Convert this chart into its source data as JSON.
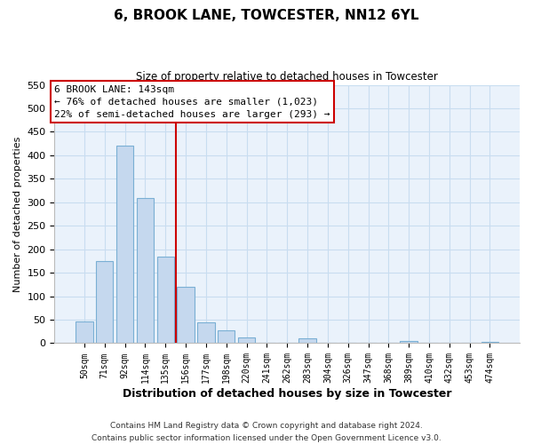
{
  "title": "6, BROOK LANE, TOWCESTER, NN12 6YL",
  "subtitle": "Size of property relative to detached houses in Towcester",
  "xlabel": "Distribution of detached houses by size in Towcester",
  "ylabel": "Number of detached properties",
  "bar_labels": [
    "50sqm",
    "71sqm",
    "92sqm",
    "114sqm",
    "135sqm",
    "156sqm",
    "177sqm",
    "198sqm",
    "220sqm",
    "241sqm",
    "262sqm",
    "283sqm",
    "304sqm",
    "326sqm",
    "347sqm",
    "368sqm",
    "389sqm",
    "410sqm",
    "432sqm",
    "453sqm",
    "474sqm"
  ],
  "bar_heights": [
    47,
    175,
    420,
    310,
    185,
    120,
    45,
    27,
    13,
    0,
    0,
    10,
    0,
    0,
    0,
    0,
    4,
    0,
    0,
    0,
    3
  ],
  "bar_color": "#c5d8ee",
  "bar_edge_color": "#7aafd4",
  "reference_line_x": 4.5,
  "reference_line_color": "#cc0000",
  "ylim": [
    0,
    550
  ],
  "yticks": [
    0,
    50,
    100,
    150,
    200,
    250,
    300,
    350,
    400,
    450,
    500,
    550
  ],
  "annotation_title": "6 BROOK LANE: 143sqm",
  "annotation_line1": "← 76% of detached houses are smaller (1,023)",
  "annotation_line2": "22% of semi-detached houses are larger (293) →",
  "annotation_box_color": "#ffffff",
  "annotation_box_edge_color": "#cc0000",
  "footer_line1": "Contains HM Land Registry data © Crown copyright and database right 2024.",
  "footer_line2": "Contains public sector information licensed under the Open Government Licence v3.0.",
  "grid_color": "#c8ddf0",
  "background_color": "#eaf2fb"
}
